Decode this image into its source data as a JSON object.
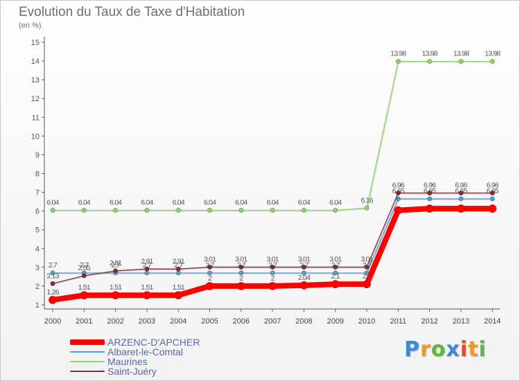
{
  "chart_data": {
    "type": "line",
    "title": "Evolution du Taux de Taxe d'Habitation",
    "ylabel": "(en %)",
    "xlabel": "",
    "x": [
      2000,
      2001,
      2002,
      2003,
      2004,
      2005,
      2006,
      2007,
      2008,
      2009,
      2010,
      2011,
      2012,
      2013,
      2014
    ],
    "ylim": [
      1,
      15
    ],
    "yticks": [
      1,
      2,
      3,
      4,
      5,
      6,
      7,
      8,
      9,
      10,
      11,
      12,
      13,
      14,
      15
    ],
    "grid": false,
    "legend": "bottom-left",
    "series": [
      {
        "name": "Maurines",
        "color": "#8ed665",
        "values": [
          6.04,
          6.04,
          6.04,
          6.04,
          6.04,
          6.04,
          6.04,
          6.04,
          6.04,
          6.04,
          6.16,
          13.98,
          13.98,
          13.98,
          13.98
        ],
        "labels": [
          "6.04",
          "6.04",
          "6.04",
          "6.04",
          "6.04",
          "6.04",
          "6.04",
          "6.04",
          "6.04",
          "6.04",
          "6.16",
          "13.98",
          "13.98",
          "13.98",
          "13.98"
        ]
      },
      {
        "name": "Albaret-le-Comtal",
        "color": "#5b9bd0",
        "values": [
          2.7,
          2.7,
          2.7,
          2.7,
          2.7,
          2.7,
          2.7,
          2.7,
          2.7,
          2.7,
          2.7,
          6.65,
          6.65,
          6.65,
          6.65
        ],
        "labels": [
          "2.7",
          "2.7",
          "2.7",
          "2.7",
          "2.7",
          "2.7",
          "2.7",
          "2.7",
          "2.7",
          "2.7",
          "2.7",
          "6.65",
          "6.65",
          "6.65",
          "6.65"
        ]
      },
      {
        "name": "Saint-Juéry",
        "color": "#7b2d3a",
        "values": [
          2.13,
          2.55,
          2.81,
          2.91,
          2.91,
          3.01,
          3.01,
          3.01,
          3.01,
          3.01,
          3.01,
          6.96,
          6.96,
          6.96,
          6.96
        ],
        "labels": [
          "2.13",
          "2.55",
          "2.81",
          "2.91",
          "2.91",
          "3.01",
          "3.01",
          "3.01",
          "3.01",
          "3.01",
          "3.01",
          "6.96",
          "6.96",
          "6.96",
          "6.96"
        ]
      },
      {
        "name": "ARZENC-D'APCHER",
        "color": "#ff0000",
        "values": [
          1.26,
          1.51,
          1.51,
          1.51,
          1.51,
          2,
          2,
          2,
          2.04,
          2.1,
          2.1,
          6.04,
          6.13,
          6.13,
          6.13
        ],
        "labels": [
          "1.26",
          "1.51",
          "1.51",
          "1.51",
          "1.51",
          "2",
          "2",
          "2",
          "2.04",
          "2.1",
          "2.1",
          "",
          "",
          "",
          ""
        ]
      }
    ],
    "legend_order": [
      "ARZENC-D'APCHER",
      "Albaret-le-Comtal",
      "Maurines",
      "Saint-Juéry"
    ],
    "legend_colors": [
      "#ff0000",
      "#5b9bd0",
      "#8ed665",
      "#7b2d3a"
    ]
  },
  "brand": {
    "name": "Proxiti",
    "letters": [
      "P",
      "r",
      "o",
      "x",
      "i",
      "t",
      "i"
    ],
    "colors": [
      "#3a8ad6",
      "#f29a1f",
      "#5cb83c",
      "#3a8ad6",
      "#e8462c",
      "#f29a1f",
      "#5cb83c"
    ]
  }
}
